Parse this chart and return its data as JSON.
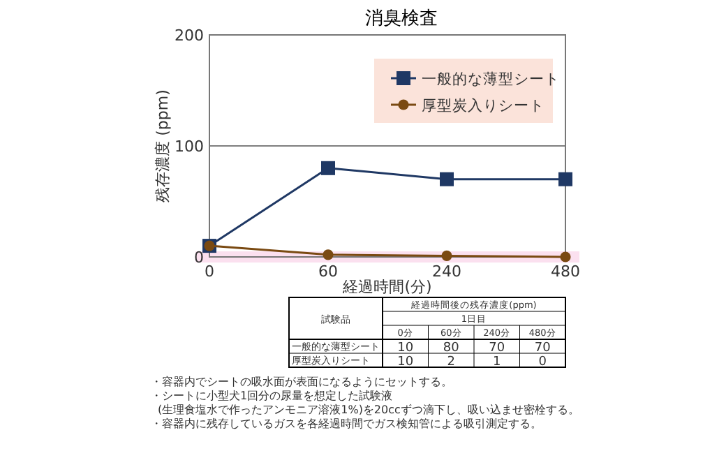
{
  "chart_data": [
    {
      "type": "line",
      "title": "消臭検査",
      "xlabel": "経過時間(分)",
      "ylabel": "残存濃度 (ppm)",
      "categories": [
        "0",
        "60",
        "240",
        "480"
      ],
      "series": [
        {
          "name": "一般的な薄型シート",
          "color": "#1f3864",
          "values": [
            10,
            80,
            70,
            70
          ],
          "marker": "square"
        },
        {
          "name": "厚型炭入りシート",
          "color": "#7a4a12",
          "values": [
            10,
            2,
            1,
            0
          ],
          "marker": "circle"
        }
      ],
      "ylim": [
        0,
        200
      ],
      "yticks": [
        0,
        100,
        200
      ],
      "grid": "y",
      "legend": "top right",
      "bands": [
        {
          "axis": "y",
          "from": 0,
          "to": 5,
          "color": "#fbe0ef"
        }
      ],
      "annotations": [
        "・容器内でシートの吸水面が表面になるようにセットする。",
        "・シートに小型犬1回分の尿量を想定した試験液",
        "(生理食塩水で作ったアンモニア溶液1%)を20ccずつ滴下し、吸い込ませ密栓する。",
        "・容器内に残存しているガスを各経過時間でガス検知管による吸引測定する。"
      ]
    },
    {
      "type": "other",
      "categories": [
        "0分",
        "60分",
        "240分",
        "480分"
      ],
      "series": [
        {
          "name": "一般的な薄型シート",
          "values": [
            10,
            80,
            70,
            70
          ]
        },
        {
          "name": "厚型炭入りシート",
          "values": [
            10,
            2,
            1,
            0
          ]
        }
      ],
      "data_labels": true,
      "annotations": [
        "試験品",
        "経過時間後の残存濃度(ppm)",
        "1日目"
      ]
    }
  ]
}
